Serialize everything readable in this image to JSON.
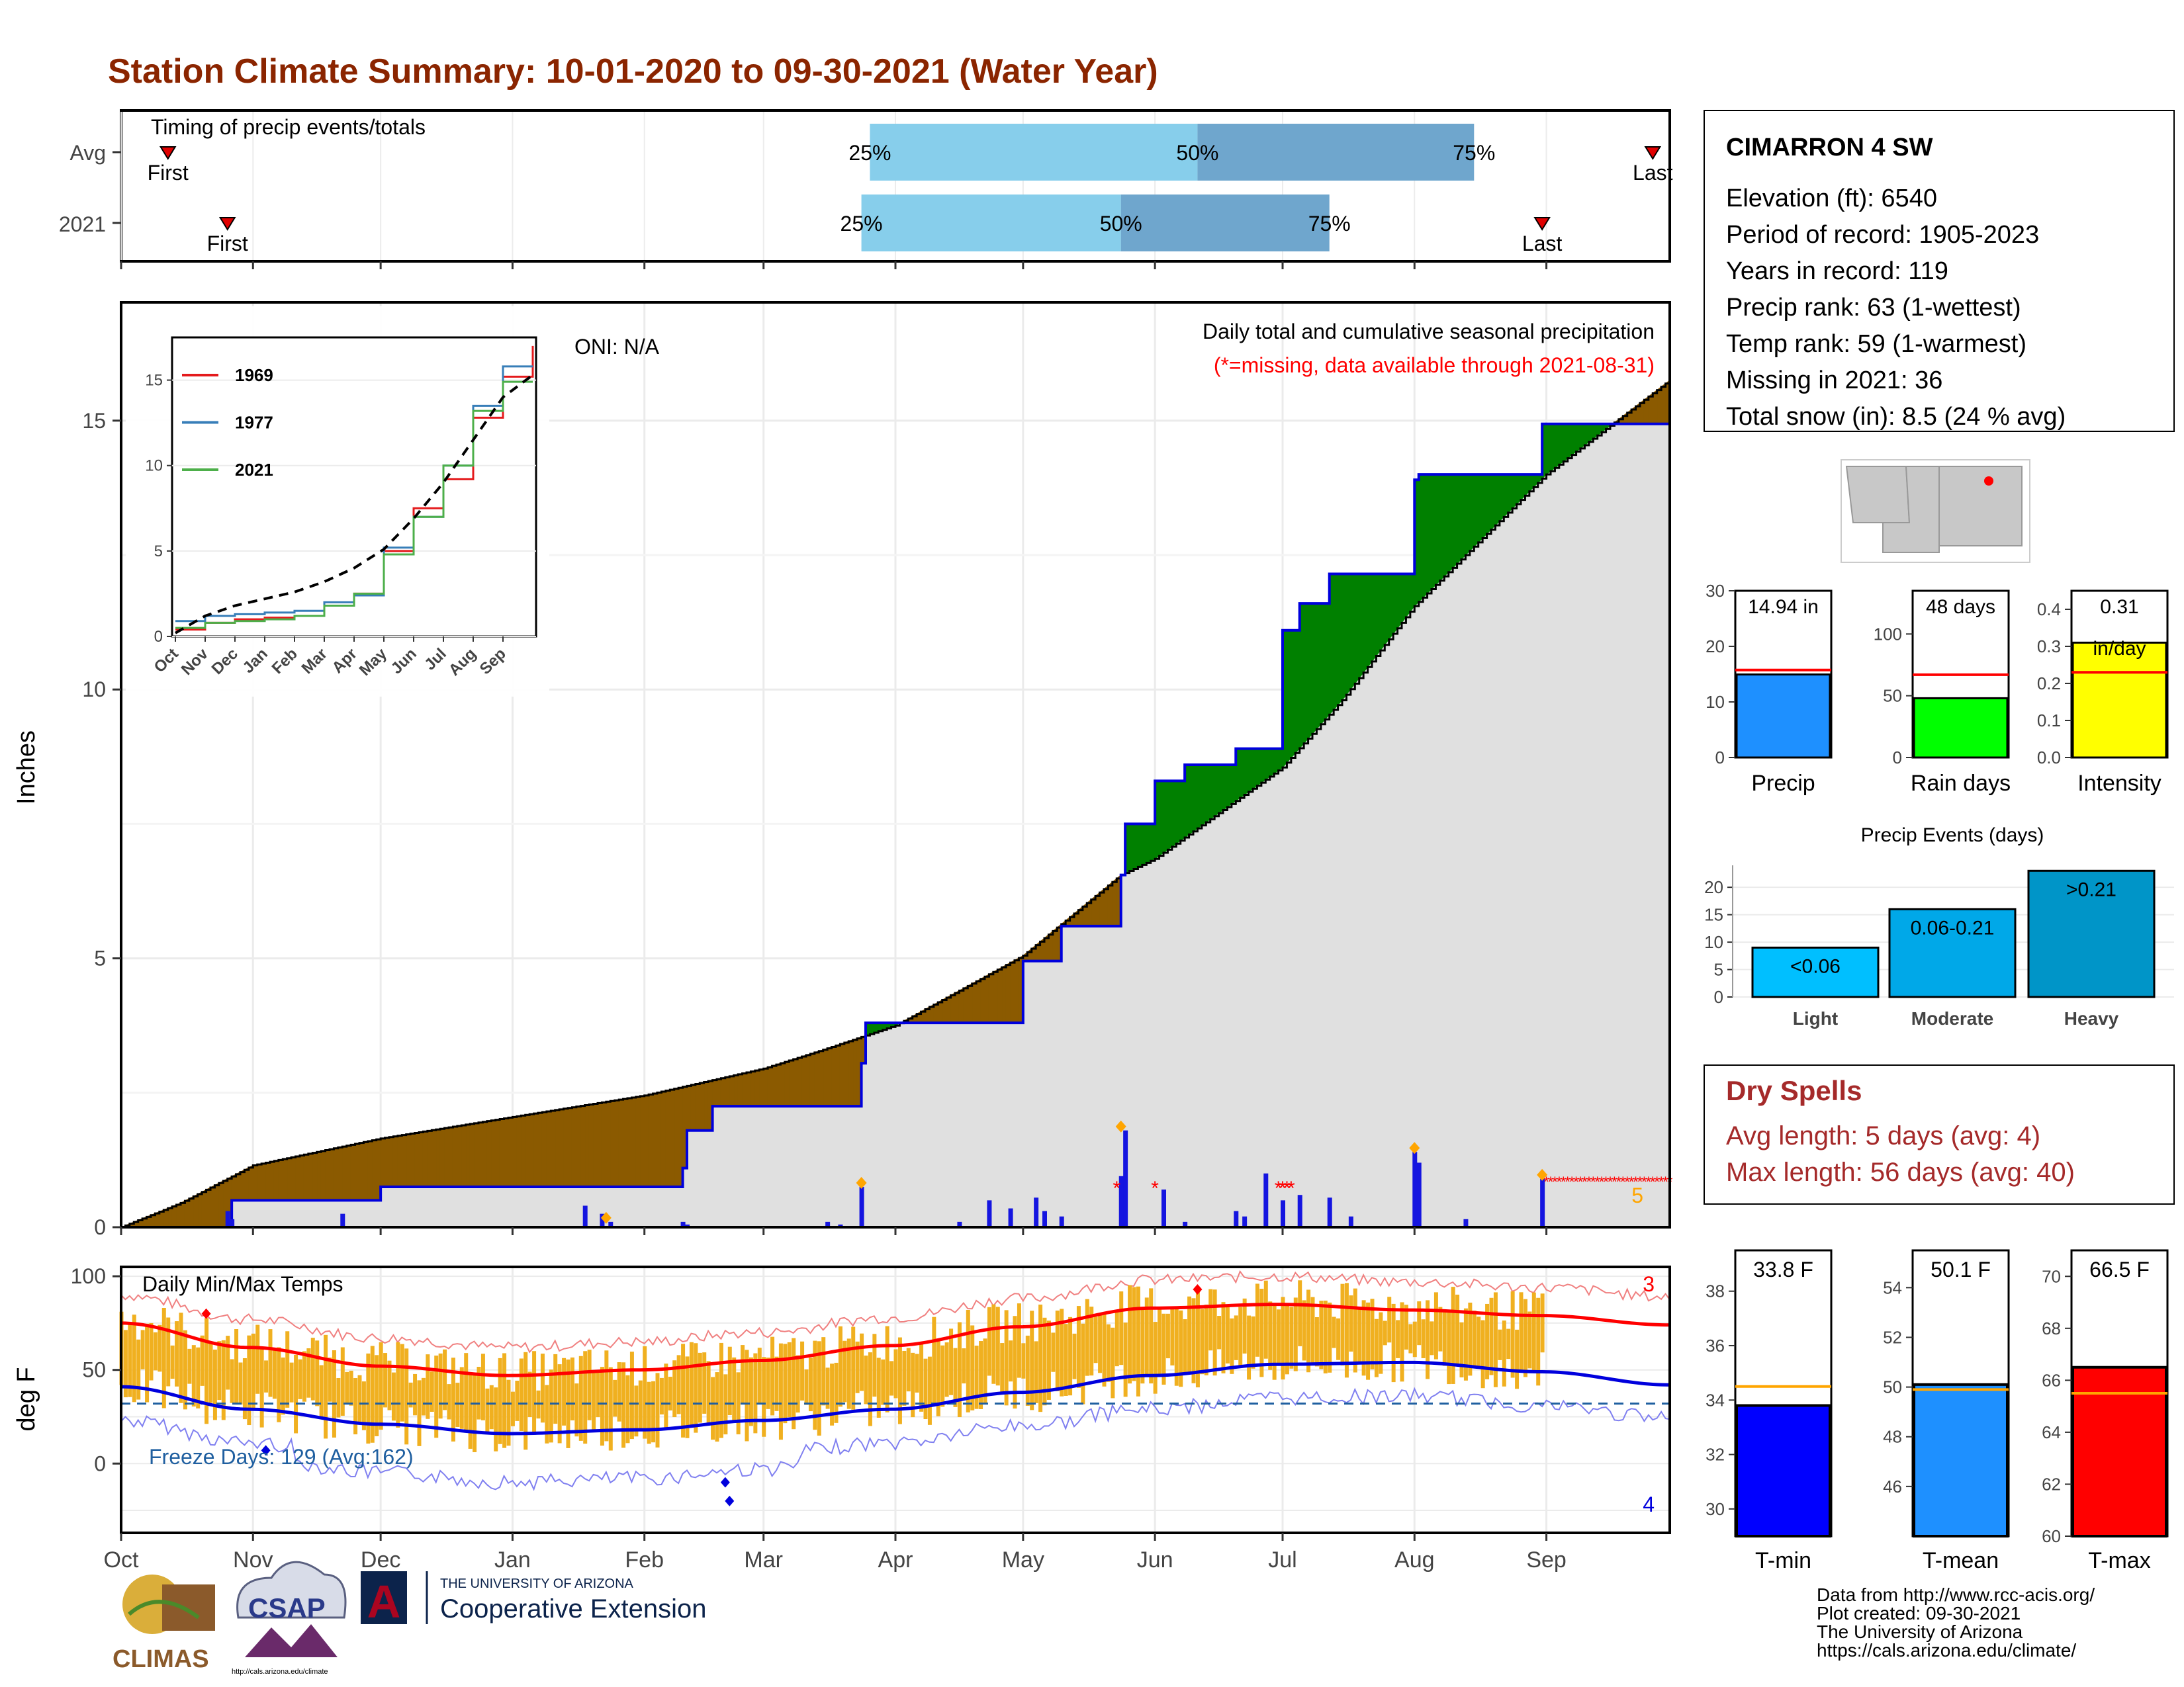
{
  "title": "Station Climate Summary: 10-01-2020 to 09-30-2021 (Water Year)",
  "timing": {
    "title": "Timing of precip events/totals",
    "rows": [
      {
        "label": "Avg",
        "first_date": "2020-10-12",
        "p25_date": "2021-03-26",
        "p50_date": "2021-06-11",
        "p75_date": "2021-08-15",
        "last_date": "2021-09-26"
      },
      {
        "label": "2021",
        "first_date": "2020-10-26",
        "p25_date": "2021-03-24",
        "p50_date": "2021-05-24",
        "p75_date": "2021-07-12",
        "last_date": "2021-08-31"
      }
    ],
    "labels": {
      "first": "First",
      "last": "Last",
      "p25": "25%",
      "p50": "50%",
      "p75": "75%"
    },
    "colors": {
      "light": "#87ceeb",
      "dark": "#6fa6cd",
      "marker": "#e00000"
    }
  },
  "main_chart": {
    "ylabel": "Inches",
    "yticks": [
      0,
      5,
      10,
      15
    ],
    "ylim": [
      0,
      17.2
    ],
    "oni": "ONI: N/A",
    "caption": "Daily total and cumulative seasonal precipitation",
    "caption_missing": "(*=missing, data available through 2021-08-31)",
    "missing_count": "5",
    "colors": {
      "deficit": "#8b5a00",
      "surplus": "#008000",
      "observed_line": "#0000dd",
      "normal_fill": "#e0e0e0",
      "bars": "#1515e0",
      "missing": "#ff0000",
      "record": "#ffa500"
    },
    "chart_data": {
      "type": "area",
      "series": [
        {
          "name": "cumulative normal",
          "x": [
            "2020-10-01",
            "2020-10-15",
            "2020-11-01",
            "2020-12-01",
            "2021-01-01",
            "2021-02-01",
            "2021-03-01",
            "2021-03-15",
            "2021-04-01",
            "2021-05-01",
            "2021-05-24",
            "2021-06-01",
            "2021-07-01",
            "2021-07-15",
            "2021-08-01",
            "2021-09-01",
            "2021-09-30"
          ],
          "values": [
            0,
            0.45,
            1.15,
            1.65,
            2.05,
            2.45,
            2.95,
            3.3,
            3.75,
            5.05,
            6.55,
            6.85,
            8.55,
            9.8,
            11.55,
            14.0,
            15.75
          ]
        },
        {
          "name": "cumulative observed",
          "x": [
            "2020-10-01",
            "2020-10-26",
            "2020-10-27",
            "2020-12-01",
            "2021-02-10",
            "2021-02-11",
            "2021-02-17",
            "2021-03-01",
            "2021-03-24",
            "2021-03-25",
            "2021-04-16",
            "2021-05-01",
            "2021-05-10",
            "2021-05-24",
            "2021-05-25",
            "2021-06-01",
            "2021-06-08",
            "2021-06-20",
            "2021-07-01",
            "2021-07-05",
            "2021-07-12",
            "2021-08-01",
            "2021-08-02",
            "2021-08-31",
            "2021-09-30"
          ],
          "values": [
            0,
            0.05,
            0.5,
            0.75,
            1.1,
            1.8,
            2.25,
            2.25,
            3.05,
            3.8,
            3.8,
            4.95,
            5.6,
            6.55,
            7.5,
            8.3,
            8.6,
            8.9,
            11.1,
            11.6,
            12.15,
            13.9,
            14.0,
            14.94,
            14.94
          ]
        }
      ],
      "daily_bars": {
        "x": [
          "2020-10-26",
          "2020-10-27",
          "2020-11-22",
          "2021-01-18",
          "2021-01-22",
          "2021-01-24",
          "2021-02-10",
          "2021-02-11",
          "2021-03-16",
          "2021-03-19",
          "2021-03-24",
          "2021-04-16",
          "2021-04-23",
          "2021-04-28",
          "2021-05-04",
          "2021-05-06",
          "2021-05-10",
          "2021-05-24",
          "2021-05-25",
          "2021-06-03",
          "2021-06-08",
          "2021-06-20",
          "2021-06-22",
          "2021-06-27",
          "2021-07-01",
          "2021-07-05",
          "2021-07-12",
          "2021-07-17",
          "2021-08-01",
          "2021-08-02",
          "2021-08-13",
          "2021-08-31"
        ],
        "values": [
          0.3,
          0.15,
          0.25,
          0.4,
          0.25,
          0.1,
          0.1,
          0.05,
          0.1,
          0.05,
          0.75,
          0.1,
          0.5,
          0.35,
          0.55,
          0.3,
          0.2,
          0.95,
          1.8,
          0.7,
          0.1,
          0.3,
          0.2,
          1.0,
          0.5,
          0.6,
          0.55,
          0.2,
          1.4,
          1.2,
          0.15,
          0.9
        ]
      },
      "missing_dates": [
        "2021-05-23",
        "2021-06-01",
        "2021-06-30",
        "2021-07-01",
        "2021-07-02",
        "2021-07-03"
      ],
      "record_markers": [
        "2021-01-23",
        "2021-03-24",
        "2021-05-24",
        "2021-08-01",
        "2021-08-31"
      ],
      "ylim": [
        0,
        17.2
      ]
    }
  },
  "inset": {
    "yticks": [
      0,
      5,
      10,
      15
    ],
    "xticks": [
      "Oct",
      "Nov",
      "Dec",
      "Jan",
      "Feb",
      "Mar",
      "Apr",
      "May",
      "Jun",
      "Jul",
      "Aug",
      "Sep"
    ],
    "chart_data": {
      "type": "line",
      "x": [
        "Oct",
        "Nov",
        "Dec",
        "Jan",
        "Feb",
        "Mar",
        "Apr",
        "May",
        "Jun",
        "Jul",
        "Aug",
        "Sep",
        "end"
      ],
      "series": [
        {
          "name": "1969",
          "values": [
            0.4,
            0.8,
            1.0,
            1.1,
            1.2,
            1.8,
            2.5,
            5.0,
            7.5,
            9.2,
            12.8,
            15.2,
            17.0
          ]
        },
        {
          "name": "1977",
          "values": [
            0.9,
            1.2,
            1.3,
            1.4,
            1.5,
            2.0,
            2.4,
            5.2,
            7.0,
            10.0,
            13.5,
            15.8,
            15.8
          ]
        },
        {
          "name": "2021",
          "values": [
            0.5,
            0.8,
            0.9,
            1.0,
            1.2,
            1.8,
            2.5,
            4.8,
            7.0,
            10.0,
            13.2,
            14.9,
            14.9
          ]
        },
        {
          "name": "",
          "values": [
            0.2,
            1.2,
            1.8,
            2.2,
            2.6,
            3.2,
            4.0,
            5.1,
            6.9,
            9.0,
            11.5,
            14.0,
            15.3
          ]
        }
      ],
      "ylim": [
        0,
        17.5
      ]
    },
    "colors": {
      "1969": "#e41a1c",
      "1977": "#377eb8",
      "2021": "#4daf4a"
    }
  },
  "temp_chart": {
    "ylabel": "deg F",
    "title": "Daily Min/Max Temps",
    "yticks": [
      0,
      50,
      100
    ],
    "ylim": [
      -37,
      105
    ],
    "freeze_text": "Freeze Days: 129 (Avg:162)",
    "record_high_count": "3",
    "record_low_count": "4",
    "xticks": [
      "Oct",
      "Nov",
      "Dec",
      "Jan",
      "Feb",
      "Mar",
      "Apr",
      "May",
      "Jun",
      "Jul",
      "Aug",
      "Sep"
    ],
    "colors": {
      "bars": "#f0b020",
      "normal_max": "#ff0000",
      "normal_min": "#0000dd",
      "freeze": "#1f5fa0",
      "record_max": "#f08080",
      "record_min": "#8080f0"
    },
    "chart_data": {
      "type": "bar",
      "normal_max": {
        "x": [
          0,
          30,
          61,
          91,
          122,
          150,
          181,
          211,
          242,
          272,
          303,
          334,
          364
        ],
        "values": [
          75,
          62,
          52,
          47,
          50,
          55,
          63,
          73,
          83,
          85,
          82,
          79,
          74
        ]
      },
      "normal_min": {
        "x": [
          0,
          30,
          61,
          91,
          122,
          150,
          181,
          211,
          242,
          272,
          303,
          334,
          364
        ],
        "values": [
          41,
          29,
          21,
          16,
          18,
          23,
          29,
          38,
          47,
          53,
          54,
          49,
          42
        ]
      },
      "freeze_line": 32,
      "observed_to": "2021-08-31"
    }
  },
  "station": {
    "name": "CIMARRON 4 SW",
    "lines": [
      "Elevation (ft): 6540",
      "Period of record: 1905-2023",
      "Years in record: 119",
      "Precip rank: 63 (1-wettest)",
      "Temp rank: 59 (1-warmest)",
      "Missing in 2021: 36",
      "Total snow (in): 8.5 (24 % avg)"
    ]
  },
  "summary_bars": [
    {
      "label": "Precip",
      "value_text": "14.94 in",
      "value": 14.94,
      "avg": 15.75,
      "ymax": 30,
      "yticks": [
        0,
        10,
        20,
        30
      ],
      "color": "#1e90ff",
      "avg_color": "#ff0000"
    },
    {
      "label": "Rain days",
      "value_text": "48 days",
      "value": 48,
      "avg": 67,
      "ymax": 135,
      "yticks": [
        0,
        50,
        100
      ],
      "color": "#00ff00",
      "avg_color": "#ff0000"
    },
    {
      "label": "Intensity",
      "value_text": "0.31",
      "value_text2": "in/day",
      "value": 0.31,
      "avg": 0.23,
      "ymax": 0.45,
      "yticks": [
        "0.0",
        "0.1",
        "0.2",
        "0.3",
        "0.4"
      ],
      "color": "#ffff00",
      "avg_color": "#ff0000"
    }
  ],
  "precip_events": {
    "title": "Precip Events (days)",
    "yticks": [
      0,
      5,
      10,
      15,
      20
    ],
    "chart_data": {
      "type": "bar",
      "categories": [
        "Light",
        "Moderate",
        "Heavy"
      ],
      "labels": [
        "<0.06",
        "0.06-0.21",
        ">0.21"
      ],
      "values": [
        9,
        16,
        23
      ],
      "ylim": [
        0,
        24
      ]
    },
    "colors": [
      "#00bfff",
      "#00a8e8",
      "#0095c8"
    ]
  },
  "dry_spells": {
    "title": "Dry Spells",
    "avg_length": "Avg length: 5 days (avg: 4)",
    "max_length": "Max length: 56 days (avg: 40)",
    "color": "#a52a2a"
  },
  "temp_bars": [
    {
      "label": "T-min",
      "value_text": "33.8 F",
      "value": 33.8,
      "avg": 34.5,
      "ymin": 29,
      "ymax": 39.5,
      "yticks": [
        30,
        32,
        34,
        36,
        38
      ],
      "color": "#0000ff",
      "avg_color": "#ffa500"
    },
    {
      "label": "T-mean",
      "value_text": "50.1 F",
      "value": 50.1,
      "avg": 49.9,
      "ymin": 44,
      "ymax": 55.5,
      "yticks": [
        46,
        48,
        50,
        52,
        54
      ],
      "color": "#1e90ff",
      "avg_color": "#ffa500"
    },
    {
      "label": "T-max",
      "value_text": "66.5 F",
      "value": 66.5,
      "avg": 65.5,
      "ymin": 60,
      "ymax": 71,
      "yticks": [
        60,
        62,
        64,
        66,
        68,
        70
      ],
      "color": "#ff0000",
      "avg_color": "#ffa500"
    }
  ],
  "footer": {
    "lines": [
      "Data from http://www.rcc-acis.org/",
      "Plot created: 09-30-2021",
      "The University of Arizona",
      "https://cals.arizona.edu/climate/"
    ],
    "logos": {
      "climas": "CLIMAS",
      "csap": "CSAP",
      "csap_url": "http://cals.arizona.edu/climate",
      "ua_small": "THE UNIVERSITY OF ARIZONA",
      "ua_big": "Cooperative Extension",
      "ua_letter": "A"
    }
  },
  "months": [
    "Oct",
    "Nov",
    "Dec",
    "Jan",
    "Feb",
    "Mar",
    "Apr",
    "May",
    "Jun",
    "Jul",
    "Aug",
    "Sep"
  ]
}
